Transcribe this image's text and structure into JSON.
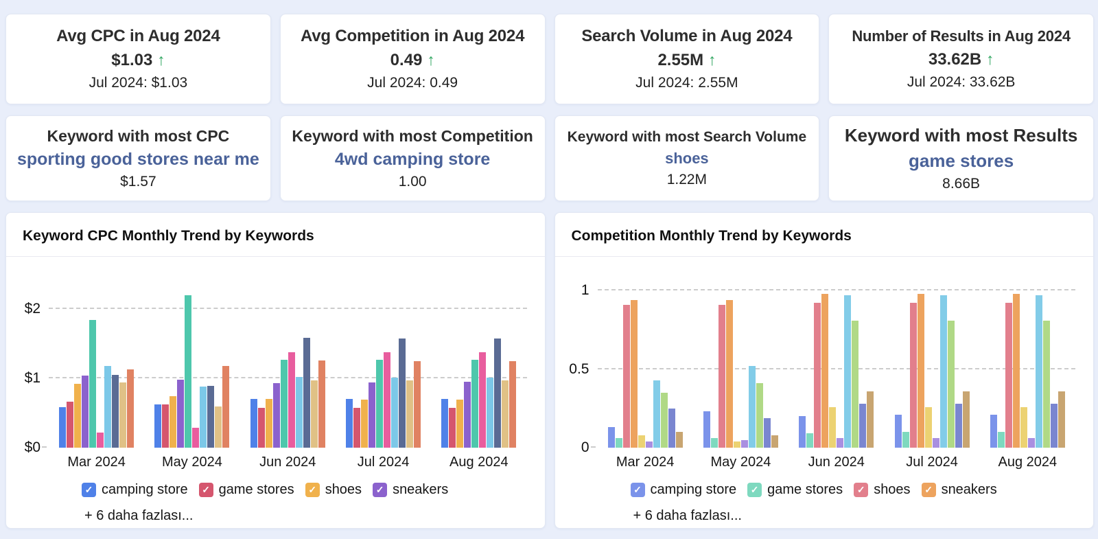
{
  "icons": {
    "trend_up": "↑",
    "checkmark": "✓"
  },
  "colors": {
    "page_bg": "#e9eefa",
    "trend_up_green": "#2ea55f",
    "keyword_link_blue": "#4a6299",
    "card_border": "#e2e7f3",
    "gridline_gray": "#cccccc"
  },
  "kpi_cards": [
    {
      "title": "Avg CPC in Aug 2024",
      "value": "$1.03",
      "previous": "Jul 2024: $1.03"
    },
    {
      "title": "Avg Competition in Aug 2024",
      "value": "0.49",
      "previous": "Jul 2024: 0.49"
    },
    {
      "title": "Search Volume in Aug 2024",
      "value": "2.55M",
      "previous": "Jul 2024: 2.55M"
    },
    {
      "title": "Number of Results in Aug 2024",
      "value": "33.62B",
      "previous": "Jul 2024: 33.62B"
    }
  ],
  "keyword_cards": [
    {
      "title": "Keyword with most CPC",
      "keyword": "sporting good stores near me",
      "value": "$1.57"
    },
    {
      "title": "Keyword with most Competition",
      "keyword": "4wd camping store",
      "value": "1.00"
    },
    {
      "title": "Keyword with most Search Volume",
      "keyword": "shoes",
      "value": "1.22M"
    },
    {
      "title": "Keyword with most Results",
      "keyword": "game stores",
      "value": "8.66B"
    }
  ],
  "chart_data": [
    {
      "type": "bar",
      "title": "Keyword CPC Monthly Trend by Keywords",
      "categories": [
        "Mar 2024",
        "May 2024",
        "Jun 2024",
        "Jul 2024",
        "Aug 2024"
      ],
      "y_axis": {
        "ticks": [
          {
            "value": 0,
            "label": "$0"
          },
          {
            "value": 1,
            "label": "$1"
          },
          {
            "value": 2,
            "label": "$2"
          }
        ],
        "max": 2.36
      },
      "grid": "dashed-horizontal",
      "legend_position": "bottom",
      "series": [
        {
          "label": "camping store",
          "color": "#4f81e8",
          "values": [
            0.59,
            0.62,
            0.7,
            0.7,
            0.7
          ]
        },
        {
          "label": "game stores",
          "color": "#d5566e",
          "values": [
            0.66,
            0.62,
            0.58,
            0.58,
            0.58
          ]
        },
        {
          "label": "shoes",
          "color": "#f0b14c",
          "values": [
            0.92,
            0.74,
            0.7,
            0.69,
            0.69
          ]
        },
        {
          "label": "sneakers",
          "color": "#8b62cd",
          "values": [
            1.04,
            0.98,
            0.93,
            0.94,
            0.95
          ]
        },
        {
          "label": "",
          "color": "#4ec7ac",
          "values": [
            1.84,
            2.2,
            1.27,
            1.27,
            1.27
          ]
        },
        {
          "label": "",
          "color": "#e85d9e",
          "values": [
            0.22,
            0.29,
            1.38,
            1.38,
            1.38
          ]
        },
        {
          "label": "",
          "color": "#7cc8e8",
          "values": [
            1.18,
            0.88,
            1.02,
            1.01,
            1.01
          ]
        },
        {
          "label": "",
          "color": "#5a6b94",
          "values": [
            1.05,
            0.89,
            1.59,
            1.58,
            1.58
          ]
        },
        {
          "label": "",
          "color": "#e0c186",
          "values": [
            0.94,
            0.6,
            0.97,
            0.97,
            0.97
          ]
        },
        {
          "label": "",
          "color": "#e08262",
          "values": [
            1.13,
            1.18,
            1.26,
            1.25,
            1.25
          ]
        }
      ],
      "legend": [
        {
          "label": "camping store",
          "color": "#4f81e8"
        },
        {
          "label": "game stores",
          "color": "#d5566e"
        },
        {
          "label": "shoes",
          "color": "#f0b14c"
        },
        {
          "label": "sneakers",
          "color": "#8b62cd"
        }
      ],
      "more_label": "+ 6 daha fazlası..."
    },
    {
      "type": "bar",
      "title": "Competition Monthly Trend by Keywords",
      "categories": [
        "Mar 2024",
        "May 2024",
        "Jun 2024",
        "Jul 2024",
        "Aug 2024"
      ],
      "y_axis": {
        "ticks": [
          {
            "value": 0,
            "label": "0"
          },
          {
            "value": 0.5,
            "label": "0.5"
          },
          {
            "value": 1,
            "label": "1"
          }
        ],
        "max": 1.04
      },
      "grid": "dashed-horizontal",
      "legend_position": "bottom",
      "series": [
        {
          "label": "camping store",
          "color": "#7b93ea",
          "values": [
            0.13,
            0.23,
            0.2,
            0.21,
            0.21
          ]
        },
        {
          "label": "game stores",
          "color": "#7ed9bf",
          "values": [
            0.06,
            0.06,
            0.09,
            0.1,
            0.1
          ]
        },
        {
          "label": "shoes",
          "color": "#e27f8c",
          "values": [
            0.91,
            0.91,
            0.92,
            0.92,
            0.92
          ]
        },
        {
          "label": "sneakers",
          "color": "#eda35e",
          "values": [
            0.94,
            0.94,
            0.98,
            0.98,
            0.98
          ]
        },
        {
          "label": "",
          "color": "#ecd272",
          "values": [
            0.08,
            0.04,
            0.26,
            0.26,
            0.26
          ]
        },
        {
          "label": "",
          "color": "#a98fe0",
          "values": [
            0.04,
            0.05,
            0.06,
            0.06,
            0.06
          ]
        },
        {
          "label": "",
          "color": "#82cce8",
          "values": [
            0.43,
            0.52,
            0.97,
            0.97,
            0.97
          ]
        },
        {
          "label": "",
          "color": "#b0d986",
          "values": [
            0.35,
            0.41,
            0.81,
            0.81,
            0.81
          ]
        },
        {
          "label": "",
          "color": "#7a86d0",
          "values": [
            0.25,
            0.19,
            0.28,
            0.28,
            0.28
          ]
        },
        {
          "label": "",
          "color": "#c8a571",
          "values": [
            0.1,
            0.08,
            0.36,
            0.36,
            0.36
          ]
        }
      ],
      "legend": [
        {
          "label": "camping store",
          "color": "#7b93ea"
        },
        {
          "label": "game stores",
          "color": "#7ed9bf"
        },
        {
          "label": "shoes",
          "color": "#e27f8c"
        },
        {
          "label": "sneakers",
          "color": "#eda35e"
        }
      ],
      "more_label": "+ 6 daha fazlası..."
    }
  ]
}
